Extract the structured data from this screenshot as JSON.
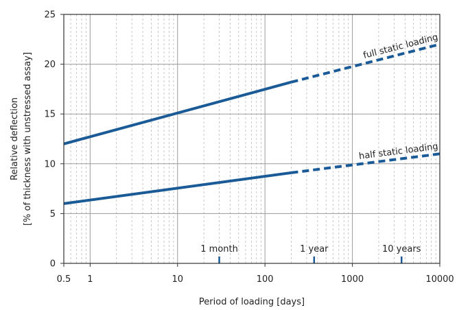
{
  "chart_data": {
    "type": "line",
    "title": "",
    "xlabel": "Period of loading [days]",
    "ylabel_line1": "Relative deflection",
    "ylabel_line2": "[% of thickness with unstressed assay]",
    "x_scale": "log",
    "xlim": [
      0.5,
      10000
    ],
    "ylim": [
      0,
      25
    ],
    "x_ticks": [
      0.5,
      1,
      10,
      100,
      1000,
      10000
    ],
    "x_tick_labels": [
      "0.5",
      "1",
      "10",
      "100",
      "1000",
      "10000"
    ],
    "y_ticks": [
      0,
      5,
      10,
      15,
      20,
      25
    ],
    "y_tick_labels": [
      "0",
      "5",
      "10",
      "15",
      "20",
      "25"
    ],
    "grid": true,
    "line_color": "#1a5a96",
    "series": [
      {
        "name": "full static loading",
        "solid": {
          "x": [
            0.5,
            200
          ],
          "y": [
            12.0,
            18.2
          ]
        },
        "dashed": {
          "x": [
            200,
            10000
          ],
          "y": [
            18.2,
            22.0
          ]
        }
      },
      {
        "name": "half static loading",
        "solid": {
          "x": [
            0.5,
            200
          ],
          "y": [
            6.0,
            9.1
          ]
        },
        "dashed": {
          "x": [
            200,
            10000
          ],
          "y": [
            9.1,
            11.0
          ]
        }
      }
    ],
    "annotations": [
      {
        "text": "1 month",
        "x": 30
      },
      {
        "text": "1 year",
        "x": 365
      },
      {
        "text": "10 years",
        "x": 3650
      }
    ]
  }
}
